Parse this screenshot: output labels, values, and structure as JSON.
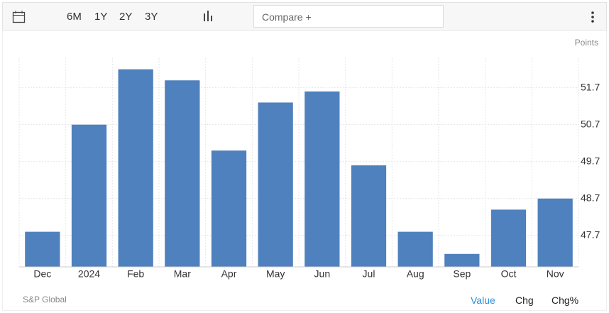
{
  "toolbar": {
    "ranges": [
      "6M",
      "1Y",
      "2Y",
      "3Y"
    ],
    "compare": "Compare +"
  },
  "source": "S&P Global",
  "tabs": [
    "Value",
    "Chg",
    "Chg%"
  ],
  "chart_data": {
    "type": "bar",
    "y_axis_label": "Points",
    "categories": [
      "Dec",
      "2024",
      "Feb",
      "Mar",
      "Apr",
      "May",
      "Jun",
      "Jul",
      "Aug",
      "Sep",
      "Oct",
      "Nov"
    ],
    "values": [
      47.8,
      50.7,
      52.2,
      51.9,
      50.0,
      51.3,
      51.6,
      49.6,
      47.8,
      47.2,
      48.4,
      48.7
    ],
    "color": "#4e81bd",
    "ylim": [
      46.85,
      52.5
    ],
    "yticks": [
      47.7,
      48.7,
      49.7,
      50.7,
      51.7
    ],
    "grid": true
  }
}
